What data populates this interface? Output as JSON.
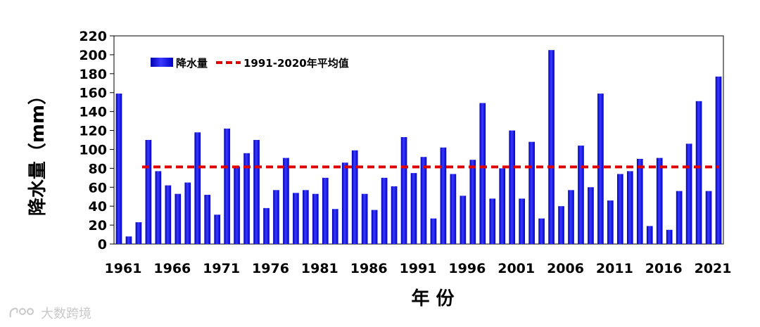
{
  "chart_data": {
    "type": "bar",
    "xlabel": "年 份",
    "ylabel": "降水量（mm）",
    "ylim": [
      0,
      220
    ],
    "yticks": [
      0,
      20,
      40,
      60,
      80,
      100,
      120,
      140,
      160,
      180,
      200,
      220
    ],
    "xtick_labels": [
      "1961",
      "1966",
      "1971",
      "1976",
      "1981",
      "1986",
      "1991",
      "1996",
      "2001",
      "2006",
      "2011",
      "2016",
      "2021"
    ],
    "x": [
      1961,
      1962,
      1963,
      1964,
      1965,
      1966,
      1967,
      1968,
      1969,
      1970,
      1971,
      1972,
      1973,
      1974,
      1975,
      1976,
      1977,
      1978,
      1979,
      1980,
      1981,
      1982,
      1983,
      1984,
      1985,
      1986,
      1987,
      1988,
      1989,
      1990,
      1991,
      1992,
      1993,
      1994,
      1995,
      1996,
      1997,
      1998,
      1999,
      2000,
      2001,
      2002,
      2003,
      2004,
      2005,
      2006,
      2007,
      2008,
      2009,
      2010,
      2011,
      2012,
      2013,
      2014,
      2015,
      2016,
      2017,
      2018,
      2019,
      2020,
      2021,
      2022
    ],
    "series": [
      {
        "name": "降水量",
        "color": "#1010e0",
        "values": [
          159,
          8,
          23,
          110,
          77,
          62,
          53,
          65,
          118,
          52,
          31,
          122,
          82,
          96,
          110,
          38,
          57,
          91,
          54,
          57,
          53,
          70,
          37,
          86,
          99,
          53,
          36,
          70,
          61,
          113,
          75,
          92,
          27,
          102,
          74,
          51,
          89,
          149,
          48,
          80,
          120,
          48,
          108,
          27,
          205,
          40,
          57,
          104,
          60,
          159,
          46,
          74,
          77,
          90,
          19,
          91,
          15,
          56,
          106,
          151,
          56,
          177
        ]
      }
    ],
    "reference_line": {
      "name": "1991-2020年平均值",
      "value": 81.5,
      "color": "#e00000",
      "style": "dashed"
    },
    "grid": false,
    "legend_position": "top-left"
  },
  "watermark": {
    "text": "大数跨境"
  }
}
